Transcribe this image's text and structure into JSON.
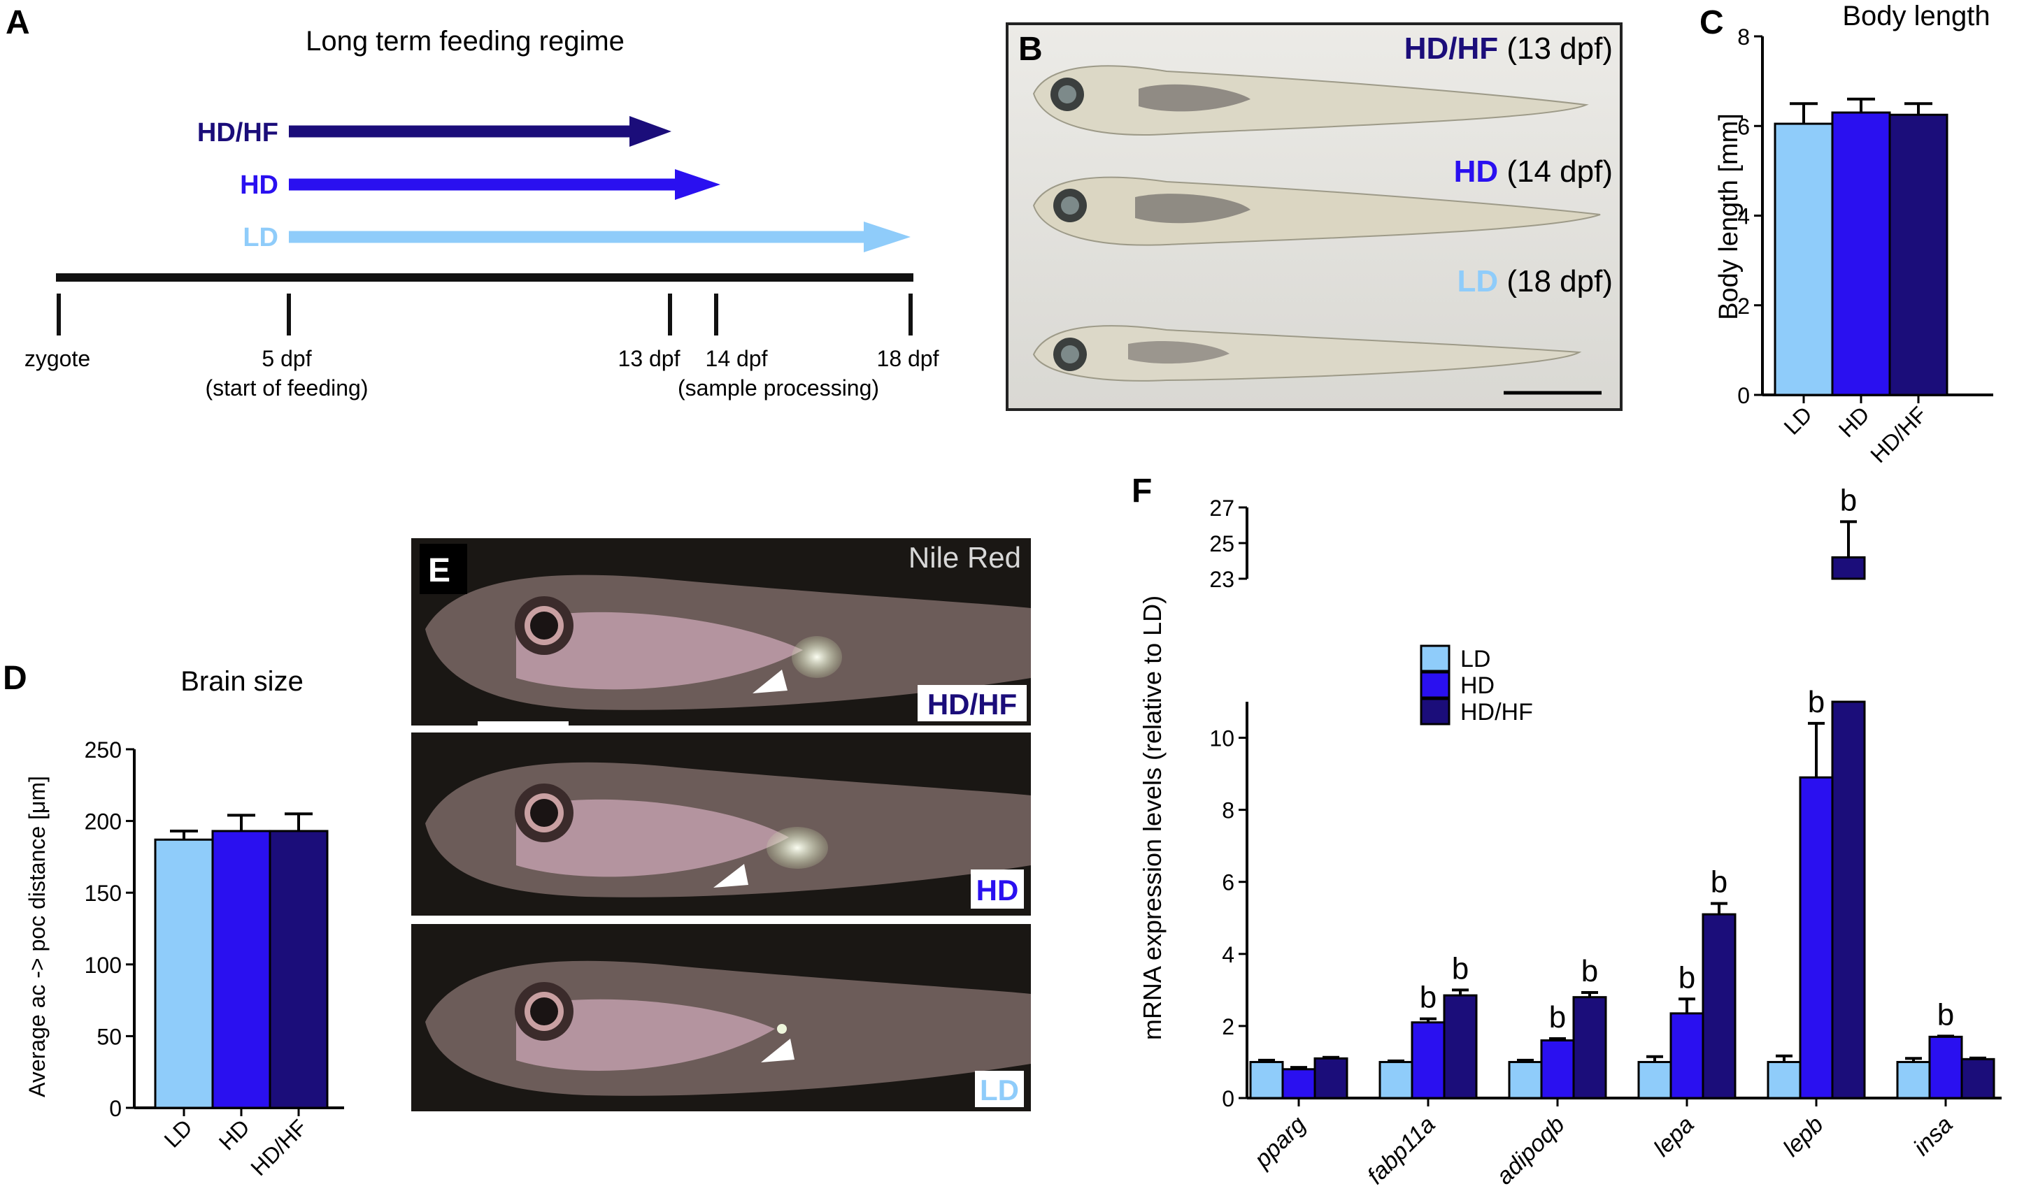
{
  "colors": {
    "LD": "#8fccfa",
    "HD": "#2a10f0",
    "HDHF": "#1b0d7a",
    "axis": "#000000"
  },
  "panel_a": {
    "letter": "A",
    "title": "Long term feeding regime",
    "arrows": [
      {
        "label": "HD/HF",
        "key": "HDHF"
      },
      {
        "label": "HD",
        "key": "HD"
      },
      {
        "label": "LD",
        "key": "LD"
      }
    ],
    "timeline": {
      "zygote": "zygote",
      "day5": "5 dpf",
      "day5_note": "(start of feeding)",
      "day13": "13 dpf",
      "day14": "14 dpf",
      "day18": "18 dpf",
      "processing_note": "(sample processing)"
    }
  },
  "panel_b": {
    "letter": "B",
    "rows": [
      {
        "group": "HD/HF",
        "age": " (13 dpf)",
        "key": "HDHF"
      },
      {
        "group": "HD",
        "age": " (14 dpf)",
        "key": "HD"
      },
      {
        "group": "LD",
        "age": " (18 dpf)",
        "key": "LD"
      }
    ]
  },
  "panel_e": {
    "letter": "E",
    "stain": "Nile Red",
    "labels": [
      "HD/HF",
      "HD",
      "LD"
    ]
  },
  "chart_data": [
    {
      "id": "C",
      "letter": "C",
      "type": "bar",
      "title": "Body length",
      "ylabel": "Body length [mm]",
      "categories": [
        "LD",
        "HD",
        "HD/HF"
      ],
      "values": [
        6.05,
        6.3,
        6.25
      ],
      "errors": [
        0.45,
        0.3,
        0.25
      ],
      "ylim": [
        0,
        8
      ],
      "yticks": [
        0,
        2,
        4,
        6,
        8
      ],
      "ytick_labels": [
        "0",
        "2",
        "4",
        "6",
        "8"
      ]
    },
    {
      "id": "D",
      "letter": "D",
      "type": "bar",
      "title": "Brain size",
      "ylabel": "Average ac -> poc distance [μm]",
      "categories": [
        "LD",
        "HD",
        "HD/HF"
      ],
      "values": [
        187,
        193,
        193
      ],
      "errors": [
        6,
        11,
        12
      ],
      "ylim": [
        0,
        250
      ],
      "yticks": [
        0,
        50,
        100,
        150,
        200,
        250
      ],
      "ytick_labels": [
        "0",
        "50",
        "100",
        "150",
        "200",
        "250"
      ]
    },
    {
      "id": "F",
      "letter": "F",
      "type": "bar",
      "ylabel": "mRNA expression levels (relative to LD)",
      "categories": [
        "pparg",
        "fabp11a",
        "adipoqb",
        "lepa",
        "lepb",
        "insa"
      ],
      "series": [
        {
          "name": "LD",
          "values": [
            1.0,
            1.0,
            1.0,
            1.0,
            1.0,
            1.0
          ],
          "errors": [
            0.05,
            0.03,
            0.05,
            0.15,
            0.17,
            0.1
          ],
          "marks": [
            "",
            "",
            "",
            "",
            "",
            ""
          ]
        },
        {
          "name": "HD",
          "values": [
            0.8,
            2.1,
            1.6,
            2.35,
            8.9,
            1.7
          ],
          "errors": [
            0.05,
            0.1,
            0.05,
            0.4,
            1.5,
            0.02
          ],
          "marks": [
            "",
            "b",
            "b",
            "b",
            "b",
            "b"
          ]
        },
        {
          "name": "HD/HF",
          "values": [
            1.1,
            2.85,
            2.8,
            5.1,
            24.2,
            1.08
          ],
          "errors": [
            0.03,
            0.15,
            0.13,
            0.3,
            2.0,
            0.03
          ],
          "marks": [
            "",
            "b",
            "b",
            "b",
            "b",
            ""
          ]
        }
      ],
      "ylim_lower": [
        0,
        11
      ],
      "ylim_upper": [
        23,
        27
      ],
      "yticks_lower": [
        0,
        2,
        4,
        6,
        8,
        10
      ],
      "ytick_labels_lower": [
        "0",
        "2",
        "4",
        "6",
        "8",
        "10"
      ],
      "yticks_upper": [
        23,
        25,
        27
      ],
      "ytick_labels_upper": [
        "23",
        "25",
        "27"
      ],
      "legend": [
        "LD",
        "HD",
        "HD/HF"
      ]
    }
  ]
}
